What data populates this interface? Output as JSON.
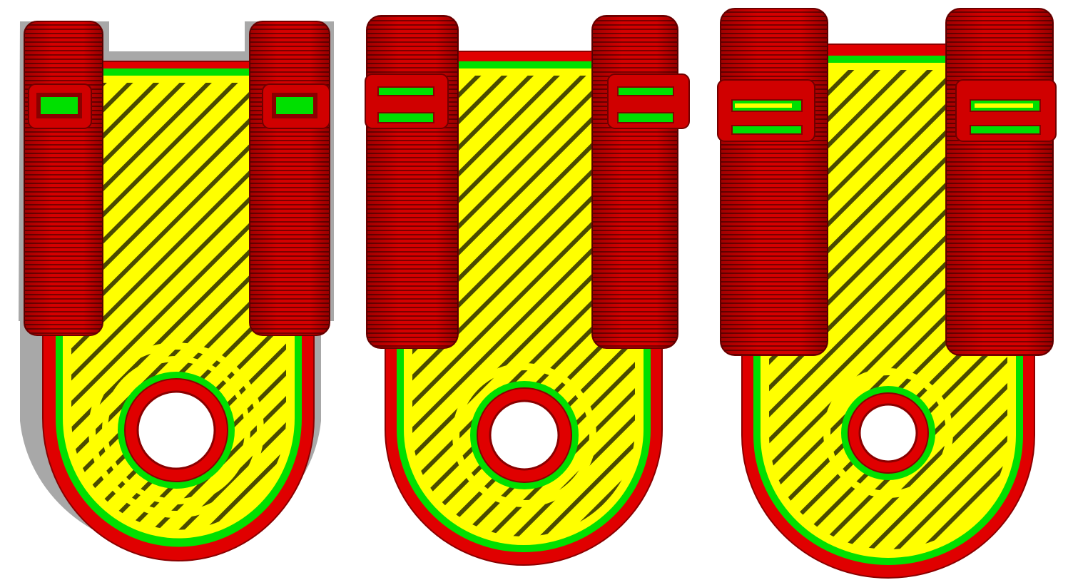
{
  "scene": {
    "description_visible_text": "",
    "colors": {
      "background": "#ffffff",
      "perimeter_outer": "#e00000",
      "perimeter_dark": "#8a0000",
      "perimeter_mid": "#c80000",
      "perimeter_inner": "#00e000",
      "infill": "#ffff00",
      "infill_hatch": "#4a4a00",
      "shadow": "#a8a8a8"
    },
    "parts": [
      {
        "id": "part-1",
        "shadow": true,
        "slot_style": "single-green"
      },
      {
        "id": "part-2",
        "shadow": false,
        "slot_style": "double-green"
      },
      {
        "id": "part-3",
        "shadow": false,
        "slot_style": "double-yellow-green"
      }
    ]
  }
}
